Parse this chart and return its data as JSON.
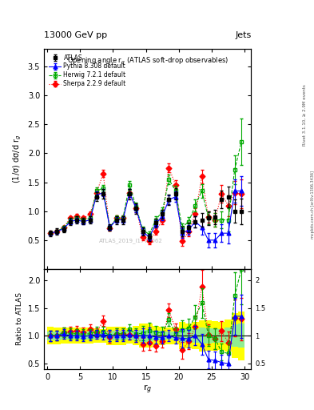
{
  "title_top": "13000 GeV pp",
  "title_top_right": "Jets",
  "plot_title": "Opening angle r$_g$ (ATLAS soft-drop observables)",
  "ylabel_main": "(1/σ) dσ/d r$_g$",
  "ylabel_ratio": "Ratio to ATLAS",
  "xlabel": "r$_g$",
  "watermark": "ATLAS_2019_I1772062",
  "right_label_top": "Rivet 3.1.10, ≥ 2.9M events",
  "right_label_bot": "mcplots.cern.ch [arXiv:1306.3436]",
  "xlim": [
    -0.5,
    31
  ],
  "ylim_main": [
    0,
    3.8
  ],
  "ylim_ratio": [
    0.4,
    2.2
  ],
  "x": [
    0.5,
    1.5,
    2.5,
    3.5,
    4.5,
    5.5,
    6.5,
    7.5,
    8.5,
    9.5,
    10.5,
    11.5,
    12.5,
    13.5,
    14.5,
    15.5,
    16.5,
    17.5,
    18.5,
    19.5,
    20.5,
    21.5,
    22.5,
    23.5,
    24.5,
    25.5,
    26.5,
    27.5,
    28.5,
    29.5
  ],
  "atlas_y": [
    0.62,
    0.65,
    0.68,
    0.82,
    0.85,
    0.83,
    0.85,
    1.25,
    1.3,
    0.72,
    0.85,
    0.85,
    1.3,
    1.05,
    0.65,
    0.55,
    0.8,
    0.95,
    1.2,
    1.3,
    0.65,
    0.72,
    0.82,
    0.85,
    0.88,
    0.9,
    1.2,
    1.25,
    1.0,
    1.0
  ],
  "atlas_yerr": [
    0.05,
    0.05,
    0.05,
    0.06,
    0.06,
    0.06,
    0.06,
    0.08,
    0.08,
    0.06,
    0.07,
    0.07,
    0.09,
    0.09,
    0.07,
    0.06,
    0.07,
    0.08,
    0.09,
    0.1,
    0.08,
    0.08,
    0.1,
    0.12,
    0.12,
    0.12,
    0.15,
    0.18,
    0.2,
    0.22
  ],
  "herwig_y": [
    0.62,
    0.65,
    0.72,
    0.85,
    0.88,
    0.85,
    0.88,
    1.35,
    1.4,
    0.72,
    0.88,
    0.88,
    1.45,
    1.08,
    0.68,
    0.6,
    0.85,
    1.0,
    1.55,
    1.35,
    0.72,
    0.82,
    1.1,
    1.35,
    0.88,
    0.85,
    0.85,
    0.85,
    1.72,
    2.2
  ],
  "herwig_yerr": [
    0.03,
    0.03,
    0.03,
    0.04,
    0.04,
    0.04,
    0.04,
    0.06,
    0.06,
    0.04,
    0.05,
    0.05,
    0.07,
    0.07,
    0.05,
    0.05,
    0.06,
    0.07,
    0.08,
    0.09,
    0.07,
    0.08,
    0.1,
    0.12,
    0.1,
    0.12,
    0.15,
    0.2,
    0.25,
    0.4
  ],
  "pythia_y": [
    0.62,
    0.65,
    0.7,
    0.82,
    0.85,
    0.82,
    0.85,
    1.28,
    1.32,
    0.72,
    0.85,
    0.85,
    1.32,
    1.05,
    0.65,
    0.55,
    0.78,
    0.92,
    1.2,
    1.25,
    0.62,
    0.68,
    0.82,
    0.72,
    0.5,
    0.5,
    0.62,
    0.62,
    1.35,
    1.35
  ],
  "pythia_yerr": [
    0.03,
    0.03,
    0.03,
    0.04,
    0.04,
    0.04,
    0.04,
    0.06,
    0.06,
    0.04,
    0.05,
    0.05,
    0.07,
    0.07,
    0.05,
    0.05,
    0.06,
    0.07,
    0.08,
    0.09,
    0.08,
    0.08,
    0.1,
    0.12,
    0.12,
    0.12,
    0.15,
    0.18,
    0.2,
    0.25
  ],
  "sherpa_y": [
    0.62,
    0.65,
    0.72,
    0.88,
    0.92,
    0.88,
    0.95,
    1.32,
    1.65,
    0.7,
    0.88,
    0.88,
    1.32,
    1.05,
    0.55,
    0.48,
    0.65,
    0.85,
    1.75,
    1.45,
    0.48,
    0.65,
    0.95,
    1.6,
    0.9,
    0.85,
    1.3,
    1.1,
    1.32,
    1.3
  ],
  "sherpa_yerr": [
    0.03,
    0.03,
    0.03,
    0.04,
    0.04,
    0.04,
    0.04,
    0.06,
    0.06,
    0.04,
    0.05,
    0.05,
    0.07,
    0.07,
    0.05,
    0.05,
    0.06,
    0.07,
    0.08,
    0.09,
    0.08,
    0.08,
    0.1,
    0.12,
    0.1,
    0.12,
    0.15,
    0.18,
    0.2,
    0.25
  ],
  "atlas_color": "black",
  "herwig_color": "#00aa00",
  "pythia_color": "blue",
  "sherpa_color": "red",
  "band_green": "#90ee90",
  "band_yellow": "#ffff00",
  "xticks": [
    0,
    5,
    10,
    15,
    20,
    25,
    30
  ],
  "yticks_main": [
    0.5,
    1.0,
    1.5,
    2.0,
    2.5,
    3.0,
    3.5
  ],
  "yticks_ratio": [
    0.5,
    1.0,
    1.5,
    2.0
  ]
}
